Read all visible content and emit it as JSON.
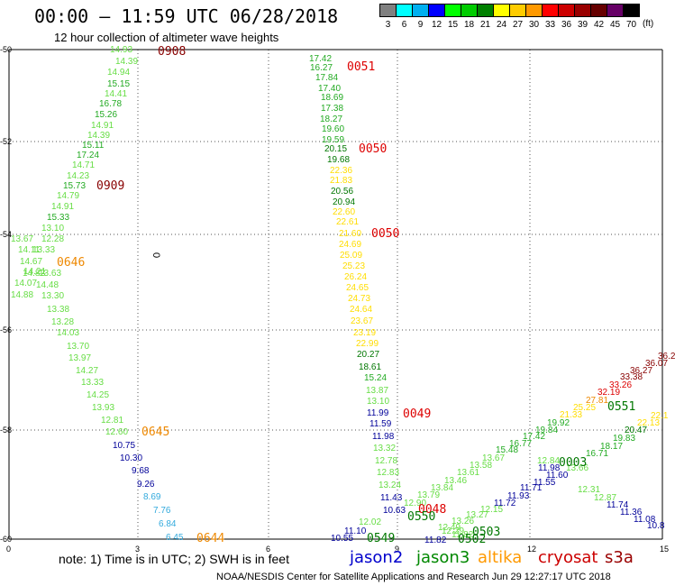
{
  "header": {
    "title": "00:00 – 11:59 UTC 06/28/2018",
    "subtitle": "12 hour collection of altimeter wave heights"
  },
  "legend": {
    "unit": "(ft)",
    "bins": [
      {
        "label": "3",
        "color": "#808080"
      },
      {
        "label": "6",
        "color": "#00ffff"
      },
      {
        "label": "9",
        "color": "#00b0f0"
      },
      {
        "label": "12",
        "color": "#0000ff"
      },
      {
        "label": "15",
        "color": "#00ff00"
      },
      {
        "label": "18",
        "color": "#00cc00"
      },
      {
        "label": "21",
        "color": "#008000"
      },
      {
        "label": "24",
        "color": "#ffff00"
      },
      {
        "label": "27",
        "color": "#ffcc00"
      },
      {
        "label": "30",
        "color": "#ff9900"
      },
      {
        "label": "33",
        "color": "#ff0000"
      },
      {
        "label": "36",
        "color": "#cc0000"
      },
      {
        "label": "39",
        "color": "#990000"
      },
      {
        "label": "42",
        "color": "#660000"
      },
      {
        "label": "45",
        "color": "#660066"
      },
      {
        "label": "70",
        "color": "#000000"
      }
    ]
  },
  "axes": {
    "y_labels": [
      "-50",
      "-52",
      "-54",
      "-56",
      "-58",
      "-60"
    ],
    "x_labels": [
      "0",
      "3",
      "6",
      "9",
      "12",
      "15"
    ]
  },
  "colors": {
    "lt": "#66dd44",
    "gr": "#22aa22",
    "dg": "#007700",
    "yl": "#ffdd00",
    "bl": "#000099",
    "cy": "#33aadd",
    "mr": "#880000",
    "rd": "#dd0000",
    "or": "#ee8800"
  },
  "map_marks": {
    "zero_label": "0"
  },
  "tracks": [
    {
      "points": [
        [
          "14.93",
          "lt"
        ],
        [
          "14.39",
          "lt"
        ],
        [
          "14.94",
          "lt"
        ],
        [
          "15.15",
          "gr"
        ],
        [
          "14.41",
          "lt"
        ],
        [
          "16.78",
          "gr"
        ],
        [
          "15.26",
          "gr"
        ],
        [
          "14.91",
          "lt"
        ],
        [
          "14.39",
          "lt"
        ],
        [
          "15.11",
          "gr"
        ],
        [
          "17.24",
          "gr"
        ],
        [
          "14.71",
          "lt"
        ],
        [
          "14.23",
          "lt"
        ],
        [
          "15.73",
          "gr"
        ],
        [
          "14.79",
          "lt"
        ],
        [
          "14.91",
          "lt"
        ],
        [
          "15.33",
          "gr"
        ],
        [
          "13.10",
          "lt"
        ],
        [
          "13.67",
          "lt"
        ],
        [
          "12.28",
          "lt"
        ],
        [
          "14.11",
          "lt"
        ],
        [
          "13.33",
          "lt"
        ],
        [
          "14.67",
          "lt"
        ],
        [
          "14.21",
          "lt"
        ],
        [
          "14.82",
          "lt"
        ],
        [
          "13.63",
          "lt"
        ],
        [
          "14.07",
          "lt"
        ],
        [
          "14.48",
          "lt"
        ],
        [
          "14.88",
          "lt"
        ],
        [
          "13.30",
          "lt"
        ],
        [
          "13.38",
          "lt"
        ],
        [
          "13.28",
          "lt"
        ],
        [
          "14.03",
          "lt"
        ],
        [
          "13.70",
          "lt"
        ],
        [
          "13.97",
          "lt"
        ],
        [
          "14.27",
          "lt"
        ],
        [
          "13.33",
          "lt"
        ],
        [
          "14.25",
          "lt"
        ],
        [
          "13.93",
          "lt"
        ],
        [
          "12.81",
          "lt"
        ],
        [
          "12.60",
          "lt"
        ]
      ]
    },
    {
      "points": [
        [
          "10.75",
          "bl"
        ],
        [
          "10.30",
          "bl"
        ],
        [
          "9.68",
          "bl"
        ],
        [
          "9.26",
          "bl"
        ],
        [
          "8.69",
          "cy"
        ],
        [
          "7.76",
          "cy"
        ],
        [
          "6.84",
          "cy"
        ],
        [
          "6.45",
          "cy"
        ]
      ]
    },
    {
      "points": [
        [
          "17.42",
          "gr"
        ],
        [
          "16.27",
          "gr"
        ],
        [
          "17.84",
          "gr"
        ],
        [
          "17.40",
          "gr"
        ],
        [
          "18.69",
          "gr"
        ],
        [
          "17.38",
          "gr"
        ],
        [
          "18.27",
          "gr"
        ],
        [
          "19.60",
          "gr"
        ],
        [
          "19.59",
          "gr"
        ],
        [
          "20.15",
          "dg"
        ],
        [
          "19.68",
          "dg"
        ],
        [
          "22.36",
          "yl"
        ],
        [
          "21.83",
          "yl"
        ],
        [
          "20.56",
          "dg"
        ],
        [
          "20.94",
          "dg"
        ],
        [
          "22.60",
          "yl"
        ],
        [
          "22.61",
          "yl"
        ],
        [
          "21.60",
          "yl"
        ],
        [
          "24.69",
          "yl"
        ],
        [
          "25.09",
          "yl"
        ],
        [
          "25.23",
          "yl"
        ],
        [
          "26.24",
          "yl"
        ],
        [
          "24.65",
          "yl"
        ],
        [
          "24.73",
          "yl"
        ],
        [
          "24.64",
          "yl"
        ],
        [
          "23.67",
          "yl"
        ],
        [
          "23.19",
          "yl"
        ],
        [
          "22.99",
          "yl"
        ],
        [
          "20.27",
          "dg"
        ],
        [
          "18.61",
          "dg"
        ],
        [
          "15.24",
          "gr"
        ],
        [
          "13.87",
          "lt"
        ],
        [
          "13.10",
          "lt"
        ]
      ]
    },
    {
      "points": [
        [
          "11.99",
          "bl"
        ],
        [
          "11.59",
          "bl"
        ],
        [
          "11.98",
          "bl"
        ],
        [
          "13.32",
          "lt"
        ],
        [
          "12.78",
          "lt"
        ],
        [
          "12.83",
          "lt"
        ],
        [
          "13.24",
          "lt"
        ],
        [
          "11.43",
          "bl"
        ],
        [
          "10.63",
          "bl"
        ],
        [
          "12.02",
          "lt"
        ],
        [
          "11.10",
          "bl"
        ],
        [
          "10.55",
          "bl"
        ]
      ]
    },
    {
      "points": [
        [
          "12.90",
          "lt"
        ],
        [
          "13.79",
          "lt"
        ],
        [
          "13.84",
          "lt"
        ],
        [
          "13.46",
          "lt"
        ],
        [
          "13.61",
          "lt"
        ],
        [
          "13.58",
          "lt"
        ],
        [
          "13.67",
          "lt"
        ],
        [
          "15.48",
          "gr"
        ],
        [
          "16.77",
          "gr"
        ],
        [
          "17.42",
          "gr"
        ],
        [
          "19.84",
          "gr"
        ],
        [
          "19.92",
          "gr"
        ],
        [
          "21.33",
          "yl"
        ],
        [
          "25.25",
          "yl"
        ],
        [
          "27.81",
          "or"
        ],
        [
          "32.19",
          "rd"
        ],
        [
          "33.26",
          "rd"
        ],
        [
          "33.38",
          "mr"
        ],
        [
          "36.27",
          "mr"
        ],
        [
          "36.07",
          "mr"
        ],
        [
          "36.2",
          "mr"
        ]
      ]
    },
    {
      "points": [
        [
          "12.49",
          "lt"
        ],
        [
          "13.26",
          "lt"
        ],
        [
          "13.27",
          "lt"
        ],
        [
          "12.15",
          "lt"
        ],
        [
          "11.72",
          "bl"
        ],
        [
          "11.93",
          "bl"
        ],
        [
          "11.71",
          "bl"
        ],
        [
          "11.55",
          "bl"
        ],
        [
          "11.60",
          "bl"
        ],
        [
          "11.98",
          "bl"
        ],
        [
          "12.84",
          "lt"
        ],
        [
          "13.66",
          "lt"
        ],
        [
          "12.31",
          "lt"
        ],
        [
          "12.87",
          "lt"
        ],
        [
          "11.74",
          "bl"
        ],
        [
          "11.36",
          "bl"
        ],
        [
          "11.08",
          "bl"
        ],
        [
          "10.8",
          "bl"
        ]
      ]
    },
    {
      "points": [
        [
          "16.71",
          "gr"
        ],
        [
          "18.17",
          "gr"
        ],
        [
          "19.83",
          "gr"
        ],
        [
          "20.47",
          "dg"
        ],
        [
          "22.13",
          "yl"
        ],
        [
          "22.1",
          "yl"
        ]
      ]
    },
    {
      "points": [
        [
          "11.82",
          "bl"
        ],
        [
          "12.29",
          "lt"
        ],
        [
          "11.82",
          "lt"
        ]
      ]
    }
  ],
  "time_labels": [
    {
      "text": "0908",
      "color": "mr"
    },
    {
      "text": "0909",
      "color": "mr"
    },
    {
      "text": "0646",
      "color": "or"
    },
    {
      "text": "0645",
      "color": "or"
    },
    {
      "text": "0644",
      "color": "or"
    },
    {
      "text": "0051",
      "color": "rd"
    },
    {
      "text": "0050",
      "color": "rd"
    },
    {
      "text": "0050",
      "color": "rd"
    },
    {
      "text": "0049",
      "color": "rd"
    },
    {
      "text": "0048",
      "color": "rd"
    },
    {
      "text": "0550",
      "color": "dg"
    },
    {
      "text": "0549",
      "color": "dg"
    },
    {
      "text": "0502",
      "color": "dg"
    },
    {
      "text": "0503",
      "color": "dg"
    },
    {
      "text": "0551",
      "color": "dg"
    },
    {
      "text": "0003",
      "color": "dg"
    }
  ],
  "footer": {
    "note": "note: 1) Time is in UTC; 2) SWH is in feet",
    "satellites": [
      {
        "name": "jason2",
        "color": "#0000cc"
      },
      {
        "name": "jason3",
        "color": "#008800"
      },
      {
        "name": "altika",
        "color": "#ff9900"
      },
      {
        "name": "cryosat",
        "color": "#cc0000"
      },
      {
        "name": "s3a",
        "color": "#990000"
      }
    ],
    "credit": "NOAA/NESDIS Center for Satellite Applications and Research    Jun 29 12:27:17 UTC 2018"
  }
}
